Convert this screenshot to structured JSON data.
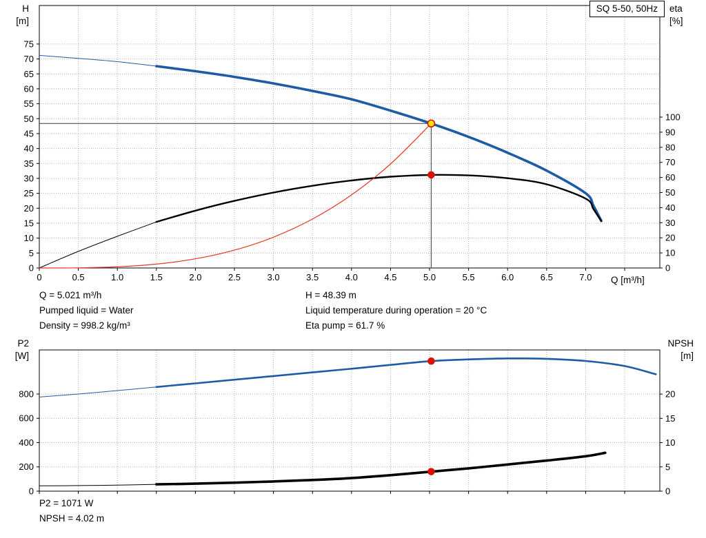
{
  "title_box": {
    "label": "SQ 5-50, 50Hz"
  },
  "info_top": {
    "left": [
      "Q = 5.021 m³/h",
      "Pumped liquid = Water",
      "Density = 998.2 kg/m³"
    ],
    "right": [
      "H = 48.39 m",
      "Liquid temperature during operation = 20 °C",
      "Eta pump = 61.7 %"
    ]
  },
  "info_bottom": [
    "P2 = 1071 W",
    "NPSH = 4.02 m"
  ],
  "colors": {
    "curve_blue": "#1d5ba5",
    "curve_black": "#000000",
    "curve_red": "#e63323",
    "marker_yellow": "#ffe500",
    "marker_red": "#dd1000",
    "grid": "#b0b0b0",
    "axis": "#000000",
    "crosshair": "#3a3a3a"
  },
  "chart_data": [
    {
      "type": "line",
      "title": "SQ 5-50, 50Hz",
      "x_axis": {
        "label": "Q [m³/h]",
        "min": 0,
        "max": 7.95,
        "grid_step": 0.5,
        "grid_end": 7.5,
        "tick_labels": [
          "0",
          "0.5",
          "1.0",
          "1.5",
          "2.0",
          "2.5",
          "3.0",
          "3.5",
          "4.0",
          "4.5",
          "5.0",
          "5.5",
          "6.0",
          "6.5",
          "7.0"
        ]
      },
      "y_left": {
        "label": "H",
        "unit": "[m]",
        "min": 0,
        "max": 87.9,
        "ticks": [
          0,
          5,
          10,
          15,
          20,
          25,
          30,
          35,
          40,
          45,
          50,
          55,
          60,
          65,
          70,
          75
        ]
      },
      "y_right": {
        "label": "eta",
        "unit": "[%]",
        "min": 0,
        "max": 174,
        "ticks": [
          0,
          10,
          20,
          30,
          40,
          50,
          60,
          70,
          80,
          90,
          100
        ]
      },
      "series": [
        {
          "name": "head-curve",
          "axis": "left",
          "color": "#1d5ba5",
          "thin_until": 1.5,
          "width": 3.6,
          "points": [
            [
              0,
              71.2
            ],
            [
              0.5,
              70.2
            ],
            [
              1,
              69.1
            ],
            [
              1.5,
              67.6
            ],
            [
              2,
              65.9
            ],
            [
              2.5,
              64.0
            ],
            [
              3,
              61.8
            ],
            [
              3.5,
              59.3
            ],
            [
              4,
              56.5
            ],
            [
              4.5,
              52.7
            ],
            [
              5.021,
              48.39
            ],
            [
              5.5,
              43.9
            ],
            [
              6,
              38.6
            ],
            [
              6.5,
              32.6
            ],
            [
              7,
              25.0
            ],
            [
              7.1,
              20.8
            ],
            [
              7.2,
              15.8
            ]
          ]
        },
        {
          "name": "efficiency-curve",
          "axis": "right",
          "color": "#000000",
          "thin_until": 1.5,
          "width": 2.4,
          "points": [
            [
              0,
              0
            ],
            [
              0.5,
              11
            ],
            [
              1,
              21
            ],
            [
              1.5,
              30.5
            ],
            [
              2,
              38
            ],
            [
              2.5,
              44.5
            ],
            [
              3,
              50
            ],
            [
              3.5,
              54.5
            ],
            [
              4,
              58
            ],
            [
              4.5,
              60.5
            ],
            [
              5.021,
              61.7
            ],
            [
              5.5,
              61.4
            ],
            [
              6,
              59.5
            ],
            [
              6.5,
              55.5
            ],
            [
              7,
              46
            ],
            [
              7.1,
              39
            ],
            [
              7.2,
              31
            ]
          ]
        },
        {
          "name": "system-curve",
          "axis": "left",
          "color": "#e63323",
          "thin_until": 0,
          "width": 1.2,
          "points": [
            [
              0,
              0
            ],
            [
              0.5,
              0.05
            ],
            [
              1,
              0.38
            ],
            [
              1.5,
              1.29
            ],
            [
              2,
              3.06
            ],
            [
              2.5,
              5.97
            ],
            [
              3,
              10.32
            ],
            [
              3.5,
              16.39
            ],
            [
              4,
              24.47
            ],
            [
              4.5,
              34.83
            ],
            [
              5.021,
              48.39
            ]
          ]
        }
      ],
      "crosshair": {
        "q": 5.021,
        "value": 48.39
      },
      "markers": [
        {
          "name": "duty-point-head",
          "axis": "left",
          "q": 5.021,
          "value": 48.39,
          "fill": "#ffe500",
          "stroke": "#dd1000",
          "r": 5
        },
        {
          "name": "duty-point-eta",
          "axis": "right",
          "q": 5.021,
          "value": 61.7,
          "fill": "#dd1000",
          "stroke": "#dd1000",
          "r": 4.5
        }
      ]
    },
    {
      "type": "line",
      "x_axis": {
        "label": "",
        "min": 0,
        "max": 7.95,
        "grid_step": 0.5,
        "grid_end": 7.5,
        "tick_labels": []
      },
      "y_left": {
        "label": "P2",
        "unit": "[W]",
        "min": 0,
        "max": 1163,
        "ticks": [
          0,
          200,
          400,
          600,
          800
        ]
      },
      "y_right": {
        "label": "NPSH",
        "unit": "[m]",
        "min": 0,
        "max": 29.1,
        "ticks": [
          0,
          5,
          10,
          15,
          20
        ]
      },
      "series": [
        {
          "name": "power-curve",
          "axis": "left",
          "color": "#1d5ba5",
          "thin_until": 1.5,
          "width": 2.6,
          "points": [
            [
              0,
              775
            ],
            [
              0.5,
              800
            ],
            [
              1,
              828
            ],
            [
              1.5,
              858
            ],
            [
              2,
              888
            ],
            [
              2.5,
              918
            ],
            [
              3,
              948
            ],
            [
              3.5,
              978
            ],
            [
              4,
              1008
            ],
            [
              4.5,
              1040
            ],
            [
              5.021,
              1071
            ],
            [
              5.5,
              1085
            ],
            [
              6,
              1093
            ],
            [
              6.5,
              1090
            ],
            [
              7,
              1072
            ],
            [
              7.5,
              1030
            ],
            [
              7.9,
              962
            ]
          ]
        },
        {
          "name": "npsh-curve",
          "axis": "right",
          "color": "#000000",
          "thin_until": 1.5,
          "width": 3.6,
          "points": [
            [
              0,
              1.1
            ],
            [
              0.5,
              1.15
            ],
            [
              1,
              1.25
            ],
            [
              1.5,
              1.4
            ],
            [
              2,
              1.55
            ],
            [
              2.5,
              1.75
            ],
            [
              3,
              2.0
            ],
            [
              3.5,
              2.3
            ],
            [
              4,
              2.7
            ],
            [
              4.5,
              3.3
            ],
            [
              5.021,
              4.02
            ],
            [
              5.5,
              4.7
            ],
            [
              6,
              5.5
            ],
            [
              6.5,
              6.3
            ],
            [
              7,
              7.2
            ],
            [
              7.25,
              7.9
            ]
          ]
        }
      ],
      "markers": [
        {
          "name": "duty-point-power",
          "axis": "left",
          "q": 5.021,
          "value": 1071,
          "fill": "#dd1000",
          "stroke": "#dd1000",
          "r": 4.5
        },
        {
          "name": "duty-point-npsh",
          "axis": "right",
          "q": 5.021,
          "value": 4.02,
          "fill": "#dd1000",
          "stroke": "#dd1000",
          "r": 4.5
        }
      ]
    }
  ]
}
